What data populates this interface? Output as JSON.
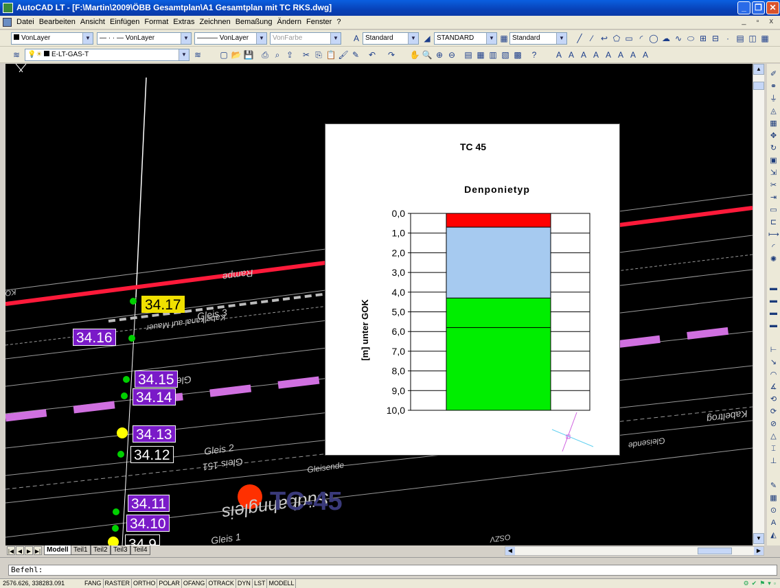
{
  "window": {
    "title": "AutoCAD LT - [F:\\Martin\\2009\\ÖBB Gesamtplan\\A1 Gesamtplan mit TC RKS.dwg]",
    "minimize": "_",
    "restore": "❐",
    "close": "✕"
  },
  "menu": {
    "items": [
      "Datei",
      "Bearbeiten",
      "Ansicht",
      "Einfügen",
      "Format",
      "Extras",
      "Zeichnen",
      "Bemaßung",
      "Ändern",
      "Fenster",
      "?"
    ],
    "mdi_controls": "_ ▫ x"
  },
  "toolbar1": {
    "layer_combo": "VonLayer",
    "linetype_combo": "—  · ·  — VonLayer",
    "lineweight_combo": "——— VonLayer",
    "color_combo": "VonFarbe",
    "textstyle_combo": "Standard",
    "dimstyle_combo": "STANDARD",
    "tablestyle_combo": "Standard"
  },
  "toolbar2": {
    "layer_name": "E-LT-GAS-T"
  },
  "drawing": {
    "tags": [
      {
        "text": "34.17",
        "style": "yellow"
      },
      {
        "text": "34.16",
        "style": "violet"
      },
      {
        "text": "34.15",
        "style": "violet"
      },
      {
        "text": "34.14",
        "style": "violet"
      },
      {
        "text": "34.13",
        "style": "violet"
      },
      {
        "text": "34.12",
        "style": "black"
      },
      {
        "text": "34.11",
        "style": "violet"
      },
      {
        "text": "34.10",
        "style": "violet"
      },
      {
        "text": "34.9",
        "style": "black"
      }
    ],
    "big_label": "TC-45",
    "labels": [
      "Gleis 3",
      "Gleis 2",
      "Gleis 1",
      "Gleis 151",
      "Rampe",
      "Südbahngleis",
      "Kabelkanal auf Mauer",
      "Gleisende",
      "Kabeltrog",
      "OSZV",
      "KOW"
    ]
  },
  "chart_window": {
    "heading": "TC 45"
  },
  "chart_data": {
    "type": "bar",
    "title": "Denponietyp",
    "ylabel": "[m] unter GOK",
    "ylim": [
      0,
      10
    ],
    "y_inverted": true,
    "ticks": [
      "0,0",
      "1,0",
      "2,0",
      "3,0",
      "4,0",
      "5,0",
      "6,0",
      "7,0",
      "8,0",
      "9,0",
      "10,0"
    ],
    "layers": [
      {
        "from": 0.0,
        "to": 0.7,
        "color": "#ff0000"
      },
      {
        "from": 0.7,
        "to": 4.3,
        "color": "#a6caf0"
      },
      {
        "from": 4.3,
        "to": 5.8,
        "color": "#00ee00"
      },
      {
        "from": 5.8,
        "to": 10.0,
        "color": "#00ee00"
      }
    ]
  },
  "layout_tabs": {
    "tabs": [
      "Modell",
      "Teil1",
      "Teil2",
      "Teil3",
      "Teil4"
    ],
    "active": "Modell"
  },
  "command": {
    "prompt": "Befehl:"
  },
  "status": {
    "coordinates": "2576.626, 338283.091",
    "toggles": [
      "FANG",
      "RASTER",
      "ORTHO",
      "POLAR",
      "OFANG",
      "OTRACK",
      "DYN",
      "LST",
      "MODELL"
    ]
  }
}
